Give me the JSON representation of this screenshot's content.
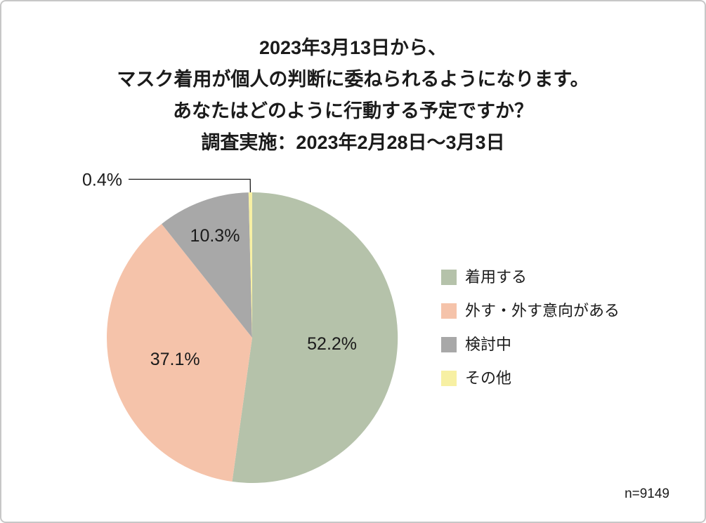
{
  "title": {
    "lines": [
      "2023年3月13日から、",
      "マスク着用が個人の判断に委ねられるようになります。",
      "あなたはどのように行動する予定ですか？",
      "調査実施：2023年2月28日～3月3日"
    ]
  },
  "footnote": "n=9149",
  "chart_data": {
    "type": "pie",
    "title": "2023年3月13日から、マスク着用が個人の判断に委ねられるようになります。あなたはどのように行動する予定ですか？",
    "subtitle": "調査実施：2023年2月28日～3月3日",
    "labels": [
      "着用する",
      "外す・外す意向がある",
      "検討中",
      "その他"
    ],
    "values": [
      52.2,
      37.1,
      10.3,
      0.4
    ],
    "data_labels": [
      "52.2%",
      "37.1%",
      "10.3%",
      "0.4%"
    ],
    "colors": [
      "#b5c2aa",
      "#f5c3aa",
      "#a8a8a8",
      "#f7f0a3"
    ],
    "start_angle": "12-o'clock",
    "direction": "clockwise",
    "legend_position": "right",
    "sample_size": "n=9149",
    "text_color": "#1b1b1b",
    "border_color": "#c7c7c7"
  }
}
